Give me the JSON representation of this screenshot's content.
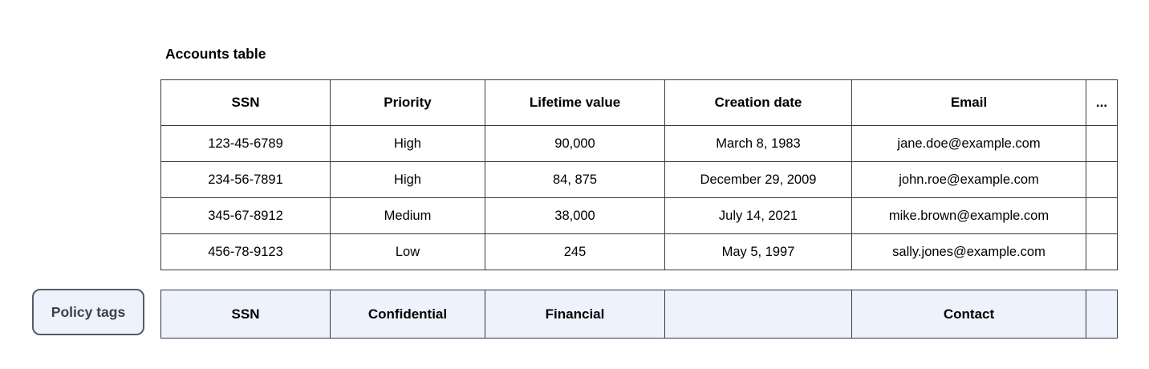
{
  "accounts_table": {
    "title": "Accounts table",
    "columns": [
      "SSN",
      "Priority",
      "Lifetime value",
      "Creation date",
      "Email",
      "..."
    ],
    "rows": [
      [
        "123-45-6789",
        "High",
        "90,000",
        "March 8, 1983",
        "jane.doe@example.com",
        ""
      ],
      [
        "234-56-7891",
        "High",
        "84, 875",
        "December 29, 2009",
        "john.roe@example.com",
        ""
      ],
      [
        "345-67-8912",
        "Medium",
        "38,000",
        "July 14, 2021",
        "mike.brown@example.com",
        ""
      ],
      [
        "456-78-9123",
        "Low",
        "245",
        "May 5, 1997",
        "sally.jones@example.com",
        ""
      ]
    ]
  },
  "policy_tags": {
    "button_label": "Policy tags",
    "tags": [
      "SSN",
      "Confidential",
      "Financial",
      "",
      "Contact",
      ""
    ]
  },
  "colors": {
    "table_border": "#363b45",
    "policy_row_bg": "#edf2fc",
    "policy_button_bg": "#edf2fc",
    "policy_button_border": "#565b63",
    "policy_button_text": "#3c414b",
    "table_text": "#000000",
    "background": "#ffffff"
  }
}
